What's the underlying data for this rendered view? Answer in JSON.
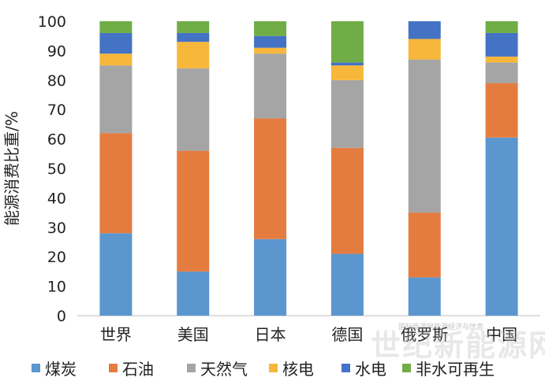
{
  "chart_data": {
    "type": "bar",
    "stacked": true,
    "ylabel": "能源消费比重/%",
    "xlabel": "",
    "ylim": [
      0,
      100
    ],
    "yticks": [
      0,
      10,
      20,
      30,
      40,
      50,
      60,
      70,
      80,
      90,
      100
    ],
    "grid": false,
    "legend_position": "bottom",
    "categories": [
      "世界",
      "美国",
      "日本",
      "德国",
      "俄罗斯",
      "中国"
    ],
    "series": [
      {
        "name": "煤炭",
        "color": "#5B96CE",
        "values": [
          28,
          15,
          26,
          21,
          13,
          60.5
        ]
      },
      {
        "name": "石油",
        "color": "#E57C3F",
        "values": [
          34,
          41,
          41,
          36,
          22,
          18.5
        ]
      },
      {
        "name": "天然气",
        "color": "#A5A5A5",
        "values": [
          23,
          28,
          22,
          23,
          52,
          7
        ]
      },
      {
        "name": "核电",
        "color": "#F7B73B",
        "values": [
          4,
          9,
          2,
          5,
          7,
          2
        ]
      },
      {
        "name": "水电",
        "color": "#4472C4",
        "values": [
          7,
          3,
          4,
          1,
          6,
          8
        ]
      },
      {
        "name": "非水可再生",
        "color": "#70AD47",
        "values": [
          4,
          4,
          5,
          14,
          0,
          4
        ]
      }
    ]
  },
  "watermark": {
    "main": "世纪新能源网",
    "small": "国际能源网能源经济与信息"
  }
}
